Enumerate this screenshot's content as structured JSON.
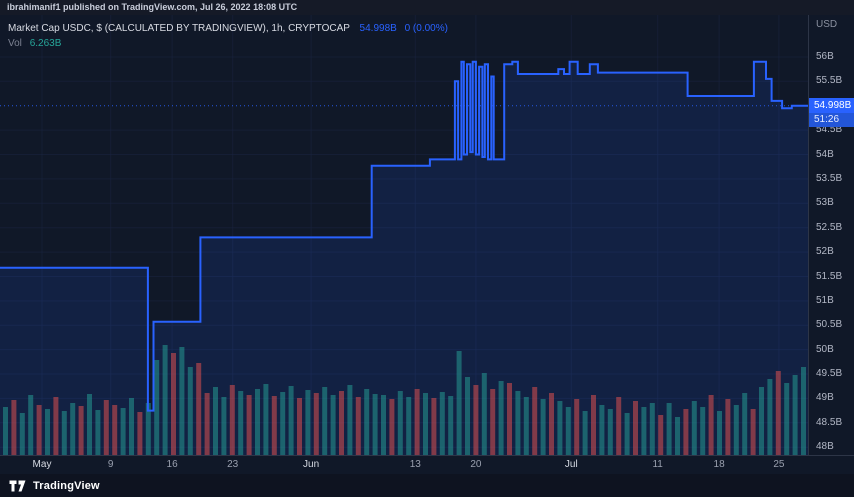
{
  "publish_bar": {
    "text": "ibrahimanif1 published on TradingView.com, Jul 26, 2022 18:08 UTC"
  },
  "legend": {
    "title": "Market Cap USDC, $ (CALCULATED BY TRADINGVIEW), 1h, CRYPTOCAP",
    "price": "54.998B",
    "change": "0 (0.00%)",
    "vol_label": "Vol",
    "vol_value": "6.263B"
  },
  "price_axis": {
    "unit": "USD",
    "last_price_label": "54.998B",
    "countdown": "51:26"
  },
  "footer": {
    "brand": "TradingView"
  },
  "colors": {
    "accent": "#2962ff",
    "line": "#2962ff",
    "area_fill": "rgba(41,98,255,0.13)",
    "vol_up": "#26a69a",
    "vol_down": "#ef5350",
    "badge_bg": "#2962ff",
    "grid": "#1a2440"
  },
  "chart_data": {
    "type": "line",
    "style": "step-area-with-volume",
    "title": "Market Cap USDC, $ (CALCULATED BY TRADINGVIEW), 1h, CRYPTOCAP",
    "ylabel": "USD (billions)",
    "last_value_B": 54.998,
    "change_label": "0 (0.00%)",
    "current_volume_B": 6.263,
    "ylim_B": [
      47.84,
      56.86
    ],
    "price_line_B": 54.998,
    "y_ticks": [
      {
        "v": 56,
        "label": "56B"
      },
      {
        "v": 55.5,
        "label": "55.5B"
      },
      {
        "v": 54.5,
        "label": "54.5B"
      },
      {
        "v": 54,
        "label": "54B"
      },
      {
        "v": 53.5,
        "label": "53.5B"
      },
      {
        "v": 53,
        "label": "53B"
      },
      {
        "v": 52.5,
        "label": "52.5B"
      },
      {
        "v": 52,
        "label": "52B"
      },
      {
        "v": 51.5,
        "label": "51.5B"
      },
      {
        "v": 51,
        "label": "51B"
      },
      {
        "v": 50.5,
        "label": "50.5B"
      },
      {
        "v": 50,
        "label": "50B"
      },
      {
        "v": 49.5,
        "label": "49.5B"
      },
      {
        "v": 49,
        "label": "49B"
      },
      {
        "v": 48.5,
        "label": "48.5B"
      },
      {
        "v": 48,
        "label": "48B"
      }
    ],
    "x_ticks": [
      {
        "label": "May",
        "f": 0.052,
        "major": true
      },
      {
        "label": "9",
        "f": 0.137
      },
      {
        "label": "16",
        "f": 0.213
      },
      {
        "label": "23",
        "f": 0.288
      },
      {
        "label": "Jun",
        "f": 0.385,
        "major": true
      },
      {
        "label": "13",
        "f": 0.514
      },
      {
        "label": "20",
        "f": 0.589
      },
      {
        "label": "Jul",
        "f": 0.707,
        "major": true
      },
      {
        "label": "11",
        "f": 0.814
      },
      {
        "label": "18",
        "f": 0.89
      },
      {
        "label": "25",
        "f": 0.964
      }
    ],
    "x_unit": "fraction_of_plot_width",
    "line_points": [
      [
        0.0,
        51.68
      ],
      [
        0.183,
        48.75
      ],
      [
        0.19,
        50.57
      ],
      [
        0.248,
        52.3
      ],
      [
        0.46,
        53.77
      ],
      [
        0.532,
        53.9
      ],
      [
        0.563,
        55.5
      ],
      [
        0.567,
        53.9
      ],
      [
        0.571,
        55.9
      ],
      [
        0.574,
        54.0
      ],
      [
        0.578,
        55.85
      ],
      [
        0.582,
        54.05
      ],
      [
        0.585,
        55.9
      ],
      [
        0.589,
        54.0
      ],
      [
        0.593,
        55.8
      ],
      [
        0.597,
        53.95
      ],
      [
        0.6,
        55.85
      ],
      [
        0.604,
        53.9
      ],
      [
        0.608,
        55.6
      ],
      [
        0.611,
        53.9
      ],
      [
        0.624,
        55.85
      ],
      [
        0.634,
        55.9
      ],
      [
        0.641,
        55.65
      ],
      [
        0.691,
        55.75
      ],
      [
        0.698,
        55.65
      ],
      [
        0.705,
        55.9
      ],
      [
        0.715,
        55.65
      ],
      [
        0.73,
        55.85
      ],
      [
        0.74,
        55.68
      ],
      [
        0.851,
        55.2
      ],
      [
        0.933,
        55.9
      ],
      [
        0.948,
        55.55
      ],
      [
        0.955,
        55.1
      ],
      [
        0.968,
        54.95
      ],
      [
        0.98,
        55.0
      ],
      [
        0.993,
        54.998
      ]
    ],
    "volume": {
      "scale": "relative_height_px_no_axis_shown",
      "heights": [
        48,
        55,
        42,
        60,
        50,
        46,
        58,
        44,
        52,
        49,
        61,
        45,
        55,
        50,
        47,
        57,
        43,
        52,
        95,
        110,
        102,
        108,
        88,
        92,
        62,
        68,
        58,
        70,
        64,
        60,
        66,
        71,
        59,
        63,
        69,
        57,
        65,
        62,
        68,
        60,
        64,
        70,
        58,
        66,
        61,
        60,
        56,
        64,
        58,
        66,
        62,
        57,
        63,
        59,
        104,
        78,
        70,
        82,
        66,
        74,
        72,
        64,
        58,
        68,
        56,
        62,
        54,
        48,
        56,
        44,
        60,
        50,
        46,
        58,
        42,
        54,
        48,
        52,
        40,
        52,
        38,
        46,
        54,
        48,
        60,
        44,
        56,
        50,
        62,
        46,
        68,
        76,
        84,
        72,
        80,
        88
      ],
      "colors": [
        "g",
        "r",
        "g",
        "g",
        "r",
        "g",
        "r",
        "g",
        "g",
        "r",
        "g",
        "g",
        "r",
        "r",
        "g",
        "g",
        "r",
        "g",
        "g",
        "g",
        "r",
        "g",
        "g",
        "r",
        "r",
        "g",
        "g",
        "r",
        "g",
        "r",
        "g",
        "g",
        "r",
        "g",
        "g",
        "r",
        "g",
        "r",
        "g",
        "g",
        "r",
        "g",
        "r",
        "g",
        "g",
        "g",
        "r",
        "g",
        "g",
        "r",
        "g",
        "r",
        "g",
        "g",
        "g",
        "g",
        "r",
        "g",
        "r",
        "g",
        "r",
        "g",
        "g",
        "r",
        "g",
        "r",
        "g",
        "g",
        "r",
        "g",
        "r",
        "g",
        "g",
        "r",
        "g",
        "r",
        "g",
        "g",
        "r",
        "g",
        "g",
        "r",
        "g",
        "g",
        "r",
        "g",
        "r",
        "g",
        "g",
        "r",
        "g",
        "g",
        "r",
        "g",
        "g",
        "g"
      ]
    }
  }
}
